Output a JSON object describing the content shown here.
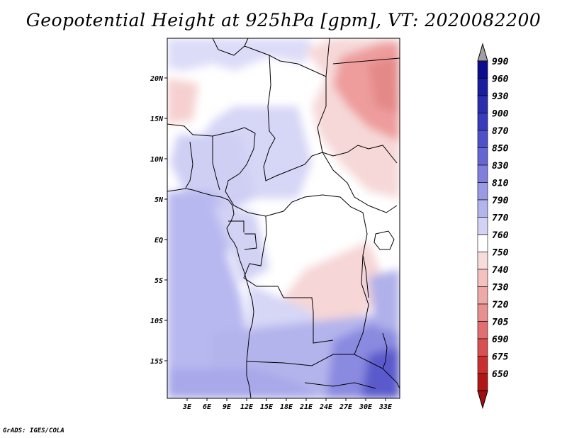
{
  "title": "Geopotential Height at 925hPa [gpm], VT: 2020082200",
  "footer": "GrADS: IGES/COLA",
  "axes": {
    "lat_labels": [
      "20N",
      "15N",
      "10N",
      "5N",
      "EQ",
      "5S",
      "10S",
      "15S"
    ],
    "lon_labels": [
      "3E",
      "6E",
      "9E",
      "12E",
      "15E",
      "18E",
      "21E",
      "24E",
      "27E",
      "30E",
      "33E"
    ]
  },
  "colorbar": {
    "levels": [
      "990",
      "960",
      "930",
      "900",
      "870",
      "850",
      "830",
      "810",
      "790",
      "770",
      "760",
      "750",
      "740",
      "730",
      "720",
      "705",
      "690",
      "675",
      "650"
    ],
    "colors": [
      "#0c0c8c",
      "#1c1c9e",
      "#2c2cae",
      "#3a3abd",
      "#5050c8",
      "#6666d2",
      "#8080dc",
      "#9999e4",
      "#b4b4ec",
      "#d2d2f4",
      "#ffffff",
      "#f8dcdc",
      "#f4c0c0",
      "#eea8a8",
      "#e89090",
      "#e07070",
      "#d85050",
      "#c83030",
      "#b01818"
    ]
  },
  "regions": {
    "sahara": "#ffffff",
    "sudan": "#f6d8d8",
    "northeast": "#ee9c9c",
    "sahel": "#dcdcf8",
    "congo": "#ffffff",
    "southeast": "#f6d6d6",
    "ocean": "#b8b8f0",
    "south": "#d6d6f6",
    "deep_south": "#8a8ae0",
    "southeast_corner": "#5a5acc"
  }
}
